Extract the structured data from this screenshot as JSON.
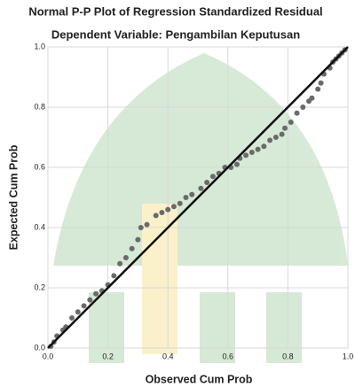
{
  "chart_data": {
    "type": "scatter",
    "title": "Normal P-P Plot of Regression Standardized Residual",
    "subtitle": "Dependent Variable: Pengambilan Keputusan",
    "x_label": "Observed Cum Prob",
    "y_label": "Expected Cum Prob",
    "color": "#6a6a6a",
    "grid": true,
    "x": [
      0.01,
      0.02,
      0.03,
      0.05,
      0.06,
      0.08,
      0.1,
      0.12,
      0.14,
      0.16,
      0.18,
      0.2,
      0.22,
      0.24,
      0.26,
      0.28,
      0.3,
      0.31,
      0.33,
      0.36,
      0.38,
      0.4,
      0.42,
      0.44,
      0.46,
      0.48,
      0.51,
      0.53,
      0.55,
      0.57,
      0.59,
      0.61,
      0.63,
      0.64,
      0.66,
      0.68,
      0.7,
      0.72,
      0.74,
      0.76,
      0.78,
      0.79,
      0.81,
      0.83,
      0.85,
      0.87,
      0.88,
      0.9,
      0.91,
      0.92,
      0.94,
      0.95,
      0.96,
      0.97,
      0.98,
      0.99
    ],
    "y": [
      0.006,
      0.02,
      0.04,
      0.06,
      0.07,
      0.1,
      0.12,
      0.14,
      0.16,
      0.18,
      0.19,
      0.21,
      0.24,
      0.28,
      0.3,
      0.33,
      0.36,
      0.4,
      0.41,
      0.44,
      0.45,
      0.46,
      0.47,
      0.48,
      0.5,
      0.51,
      0.53,
      0.55,
      0.57,
      0.58,
      0.6,
      0.6,
      0.61,
      0.63,
      0.64,
      0.65,
      0.66,
      0.67,
      0.69,
      0.7,
      0.71,
      0.73,
      0.75,
      0.78,
      0.8,
      0.82,
      0.83,
      0.86,
      0.88,
      0.91,
      0.93,
      0.95,
      0.96,
      0.97,
      0.98,
      0.99
    ],
    "reference_line": {
      "x": [
        0,
        1
      ],
      "y": [
        0,
        1
      ],
      "color": "#111111"
    },
    "xlim": [
      0,
      1
    ],
    "ylim": [
      0,
      1
    ],
    "xticks": [
      {
        "value": 0,
        "label": "0.0"
      },
      {
        "value": 0.2,
        "label": "0.2"
      },
      {
        "value": 0.4,
        "label": "0.4"
      },
      {
        "value": 0.6,
        "label": "0.6"
      },
      {
        "value": 0.8,
        "label": "0.8"
      },
      {
        "value": 1,
        "label": "1.0"
      }
    ],
    "yticks": [
      {
        "value": 0,
        "label": "0.0"
      },
      {
        "value": 0.2,
        "label": "0.2"
      },
      {
        "value": 0.4,
        "label": "0.4"
      },
      {
        "value": 0.6,
        "label": "0.6"
      },
      {
        "value": 0.8,
        "label": "0.8"
      },
      {
        "value": 1,
        "label": "1.0"
      }
    ]
  }
}
